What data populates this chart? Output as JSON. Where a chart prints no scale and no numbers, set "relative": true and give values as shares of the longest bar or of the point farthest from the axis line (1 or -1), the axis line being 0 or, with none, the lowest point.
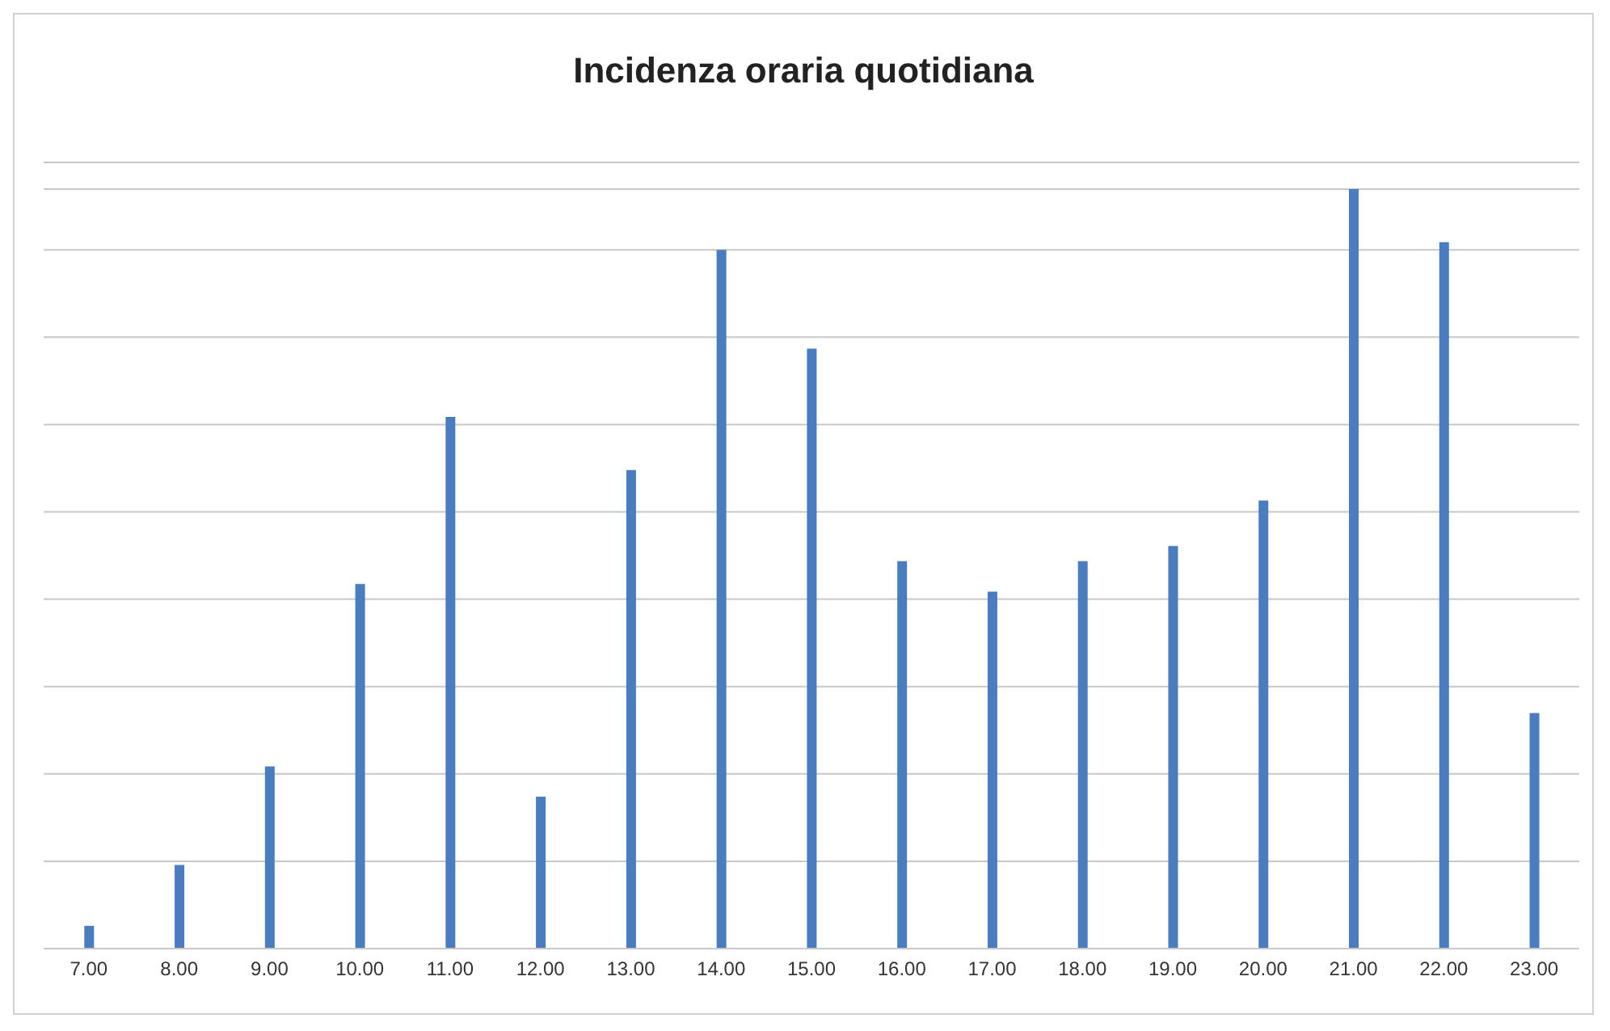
{
  "chart_data": {
    "type": "bar",
    "title": "Incidenza oraria quotidiana",
    "relative": true,
    "grid": "y",
    "categories": [
      "7.00",
      "8.00",
      "9.00",
      "10.00",
      "11.00",
      "12.00",
      "13.00",
      "14.00",
      "15.00",
      "16.00",
      "17.00",
      "18.00",
      "19.00",
      "20.00",
      "21.00",
      "22.00",
      "23.00"
    ],
    "color": "#4a7cc0",
    "values": [
      0.03,
      0.11,
      0.24,
      0.48,
      0.7,
      0.2,
      0.63,
      0.92,
      0.79,
      0.51,
      0.47,
      0.51,
      0.53,
      0.59,
      1,
      0.93,
      0.31
    ]
  }
}
